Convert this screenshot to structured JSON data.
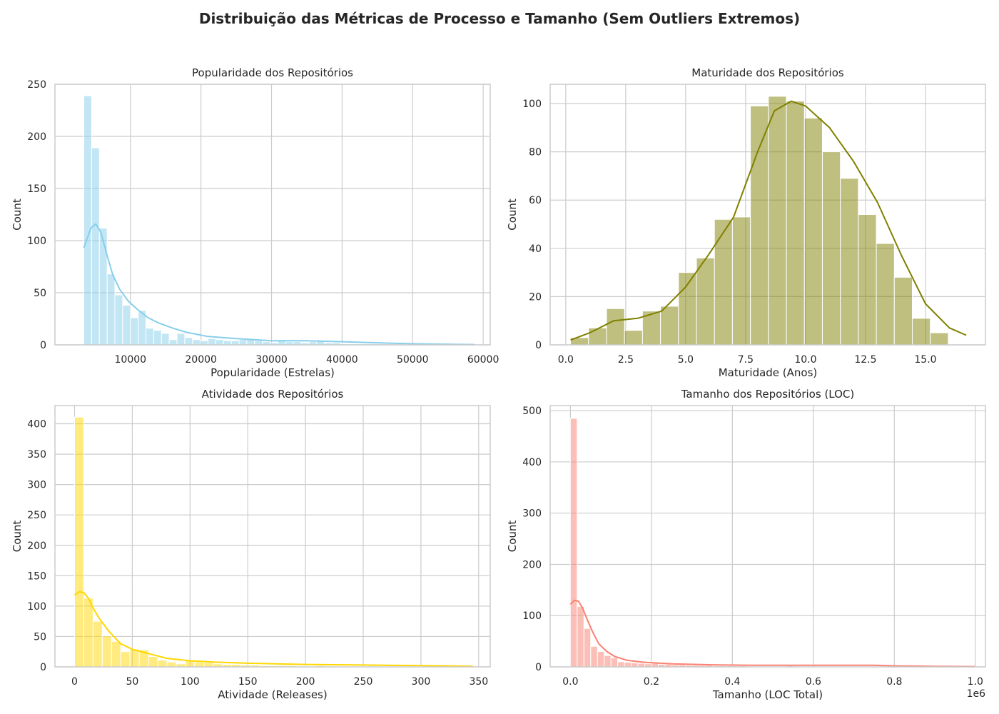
{
  "suptitle": "Distribuição das Métricas de Processo e Tamanho (Sem Outliers Extremos)",
  "chart_data": [
    {
      "type": "histogram",
      "title": "Popularidade dos Repositórios",
      "xlabel": "Popularidade (Estrelas)",
      "ylabel": "Count",
      "xlim": [
        -700,
        61000
      ],
      "ylim": [
        0,
        250
      ],
      "xticks": [
        10000,
        20000,
        30000,
        40000,
        50000,
        60000
      ],
      "xtick_labels": [
        "10000",
        "20000",
        "30000",
        "40000",
        "50000",
        "60000"
      ],
      "yticks": [
        0,
        50,
        100,
        150,
        200,
        250
      ],
      "ytick_labels": [
        "0",
        "50",
        "100",
        "150",
        "200",
        "250"
      ],
      "color": "#87ceeb",
      "grid": true,
      "bins": {
        "start": 3400,
        "width": 1100,
        "counts": [
          239,
          189,
          112,
          68,
          48,
          38,
          26,
          33,
          16,
          14,
          11,
          5,
          11,
          7,
          5,
          4,
          6,
          5,
          4,
          4,
          5,
          5,
          4,
          3,
          2,
          5,
          3,
          3,
          2,
          3,
          4,
          2,
          2,
          1,
          1,
          1,
          1,
          1,
          1,
          1,
          1,
          0,
          1,
          0,
          1,
          0,
          0,
          0,
          0,
          0,
          0
        ]
      },
      "kde": {
        "x": [
          3400,
          4400,
          5100,
          5800,
          6600,
          7500,
          8500,
          9700,
          11000,
          12500,
          14000,
          16000,
          18000,
          21000,
          25000,
          30000,
          35000,
          40000,
          45000,
          50000,
          55000,
          58800
        ],
        "y": [
          93,
          112,
          116,
          108,
          88,
          67,
          53,
          42,
          34,
          26,
          21,
          16,
          12,
          8,
          6,
          4,
          4,
          3,
          2,
          1,
          0.6,
          0.3
        ]
      }
    },
    {
      "type": "histogram",
      "title": "Maturidade dos Repositórios",
      "xlabel": "Maturidade (Anos)",
      "ylabel": "Count",
      "xlim": [
        -0.65,
        17.5
      ],
      "ylim": [
        0,
        108
      ],
      "xticks": [
        0,
        2.5,
        5,
        7.5,
        10,
        12.5,
        15
      ],
      "xtick_labels": [
        "0.0",
        "2.5",
        "5.0",
        "7.5",
        "10.0",
        "12.5",
        "15.0"
      ],
      "yticks": [
        0,
        20,
        40,
        60,
        80,
        100
      ],
      "ytick_labels": [
        "0",
        "20",
        "40",
        "60",
        "80",
        "100"
      ],
      "color": "#808000",
      "grid": true,
      "bins": {
        "start": 0.2,
        "width": 0.75,
        "counts": [
          3,
          7,
          15,
          6,
          14,
          16,
          30,
          36,
          52,
          53,
          99,
          103,
          101,
          94,
          80,
          69,
          54,
          42,
          28,
          11,
          5,
          0
        ]
      },
      "kde": {
        "x": [
          0.2,
          1,
          2,
          3,
          4,
          5,
          6,
          7,
          8,
          8.7,
          9.4,
          10,
          11,
          12,
          13,
          14,
          15,
          16,
          16.7
        ],
        "y": [
          2,
          5,
          10,
          11,
          14,
          24,
          38,
          53,
          80,
          97,
          101,
          99,
          90,
          76,
          59,
          37,
          17,
          7,
          4
        ]
      }
    },
    {
      "type": "histogram",
      "title": "Atividade dos Repositórios",
      "xlabel": "Atividade (Releases)",
      "ylabel": "Count",
      "xlim": [
        -17,
        360
      ],
      "ylim": [
        0,
        430
      ],
      "xticks": [
        0,
        50,
        100,
        150,
        200,
        250,
        300,
        350
      ],
      "xtick_labels": [
        "0",
        "50",
        "100",
        "150",
        "200",
        "250",
        "300",
        "350"
      ],
      "yticks": [
        0,
        50,
        100,
        150,
        200,
        250,
        300,
        350,
        400
      ],
      "ytick_labels": [
        "0",
        "50",
        "100",
        "150",
        "200",
        "250",
        "300",
        "350",
        "400"
      ],
      "color": "#ffd700",
      "grid": true,
      "bins": {
        "start": 0,
        "width": 8,
        "counts": [
          411,
          113,
          75,
          51,
          42,
          25,
          29,
          28,
          17,
          11,
          8,
          5,
          10,
          8,
          7,
          5,
          4,
          4,
          3,
          3,
          2,
          2,
          2,
          2,
          1,
          1,
          2,
          1,
          1,
          1,
          1,
          1,
          1,
          1,
          0,
          1,
          0,
          1,
          0,
          0,
          0,
          0,
          1
        ]
      },
      "kde": {
        "x": [
          0,
          4,
          8,
          12,
          16,
          22,
          30,
          40,
          50,
          60,
          70,
          80,
          100,
          120,
          150,
          200,
          250,
          300,
          345
        ],
        "y": [
          118,
          124,
          122,
          113,
          97,
          78,
          58,
          38,
          29,
          24,
          19,
          14,
          10,
          8,
          6,
          4,
          3,
          2,
          1
        ]
      }
    },
    {
      "type": "histogram",
      "title": "Tamanho dos Repositórios (LOC)",
      "xlabel": "Tamanho (LOC Total)",
      "ylabel": "Count",
      "axis_offset_text": "1e6",
      "xlim": [
        -0.05,
        1.025
      ],
      "ylim": [
        0,
        510
      ],
      "xticks": [
        0,
        0.2,
        0.4,
        0.6,
        0.8,
        1.0
      ],
      "xtick_labels": [
        "0.0",
        "0.2",
        "0.4",
        "0.6",
        "0.8",
        "1.0"
      ],
      "yticks": [
        0,
        100,
        200,
        300,
        400,
        500
      ],
      "ytick_labels": [
        "0",
        "100",
        "200",
        "300",
        "400",
        "500"
      ],
      "color": "#fa8072",
      "grid": true,
      "bins": {
        "start": 0,
        "width": 0.0167,
        "counts": [
          485,
          118,
          75,
          40,
          30,
          22,
          18,
          10,
          9,
          8,
          7,
          6,
          7,
          5,
          5,
          4,
          4,
          3,
          3,
          3,
          3,
          2,
          2,
          2,
          2,
          2,
          1,
          1,
          1,
          1,
          1,
          1,
          2,
          1,
          1,
          1,
          1,
          1,
          1,
          1,
          1,
          1,
          1,
          1,
          1,
          1,
          1,
          0,
          1,
          0,
          0,
          0,
          0,
          0,
          0,
          0,
          0,
          0,
          0,
          1
        ]
      },
      "kde": {
        "x": [
          0,
          0.01,
          0.02,
          0.03,
          0.04,
          0.055,
          0.07,
          0.09,
          0.11,
          0.14,
          0.18,
          0.25,
          0.35,
          0.45,
          0.55,
          0.65,
          0.75,
          0.8,
          0.9,
          1.0
        ],
        "y": [
          122,
          130,
          128,
          115,
          95,
          68,
          45,
          30,
          20,
          13,
          9,
          6,
          4,
          3,
          3,
          3,
          3,
          2,
          1,
          0.5
        ]
      }
    }
  ]
}
